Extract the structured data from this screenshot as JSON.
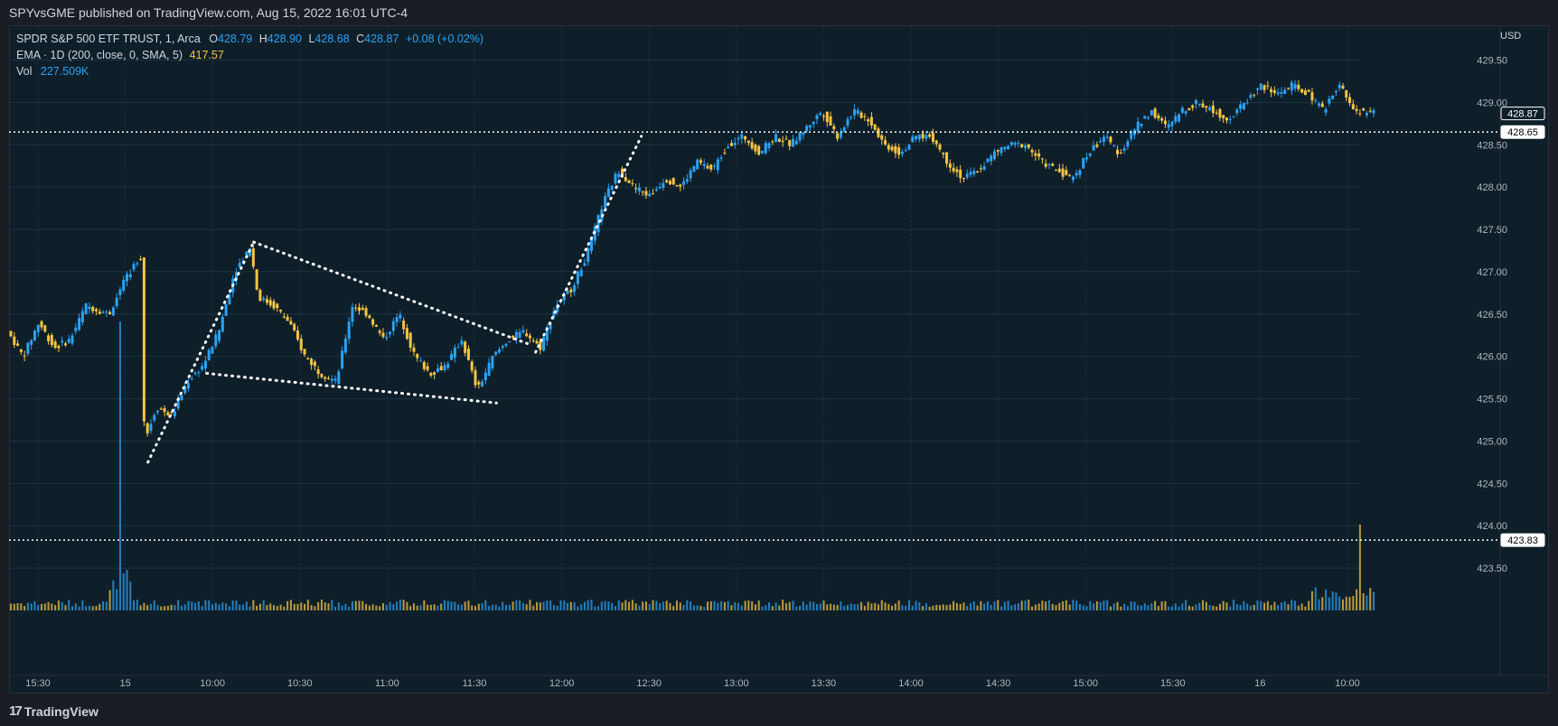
{
  "header": {
    "published": "SPYvsGME published on TradingView.com, Aug 15, 2022 16:01 UTC-4"
  },
  "legend": {
    "symbol": "SPDR S&P 500 ETF TRUST, 1, Arca",
    "o_label": "O",
    "o": "428.79",
    "h_label": "H",
    "h": "428.90",
    "l_label": "L",
    "l": "428.68",
    "c_label": "C",
    "c": "428.87",
    "change": "+0.08 (+0.02%)",
    "ema_label": "EMA · 1D (200, close, 0, SMA, 5)",
    "ema_value": "417.57",
    "vol_label": "Vol",
    "vol_value": "227.509K"
  },
  "axis": {
    "currency": "USD"
  },
  "footer": {
    "logo_mark": "17",
    "brand": "TradingView"
  },
  "colors": {
    "up": "#2aa2f5",
    "down": "#f5c542",
    "bg": "#0f1f2a",
    "grid": "#1f3340",
    "dotted": "#ffffff"
  },
  "chart_data": {
    "type": "candlestick",
    "ylim": [
      423.0,
      429.9
    ],
    "y_ticks": [
      "429.50",
      "429.00",
      "428.50",
      "428.00",
      "427.50",
      "427.00",
      "426.50",
      "426.00",
      "425.50",
      "425.00",
      "424.50",
      "424.00",
      "423.50"
    ],
    "y_tick_values": [
      429.5,
      429.0,
      428.5,
      428.0,
      427.5,
      427.0,
      426.5,
      426.0,
      425.5,
      425.0,
      424.5,
      424.0,
      423.5
    ],
    "x_ticks": [
      "15:30",
      "15",
      "10:00",
      "10:30",
      "11:00",
      "11:30",
      "12:00",
      "12:30",
      "13:00",
      "13:30",
      "14:00",
      "14:30",
      "15:00",
      "15:30",
      "16",
      "10:00"
    ],
    "price_labels": [
      {
        "label": "428.87",
        "value": 428.87,
        "style": "box"
      },
      {
        "label": "428.65",
        "value": 428.65,
        "style": "filled"
      },
      {
        "label": "423.83",
        "value": 423.83,
        "style": "filled"
      }
    ],
    "horizontal_levels": [
      428.65,
      423.83
    ],
    "price_path": [
      [
        0,
        426.3
      ],
      [
        0.02,
        426.0
      ],
      [
        0.04,
        426.4
      ],
      [
        0.06,
        426.1
      ],
      [
        0.08,
        426.2
      ],
      [
        0.1,
        426.6
      ],
      [
        0.13,
        426.5
      ],
      [
        0.15,
        426.9
      ],
      [
        0.17,
        427.2
      ],
      [
        0.175,
        425.0
      ],
      [
        0.19,
        425.4
      ],
      [
        0.21,
        425.3
      ],
      [
        0.23,
        425.7
      ],
      [
        0.25,
        425.9
      ],
      [
        0.27,
        426.3
      ],
      [
        0.29,
        427.0
      ],
      [
        0.31,
        427.3
      ],
      [
        0.32,
        426.7
      ],
      [
        0.34,
        426.6
      ],
      [
        0.36,
        426.4
      ],
      [
        0.38,
        426.0
      ],
      [
        0.4,
        425.8
      ],
      [
        0.42,
        425.7
      ],
      [
        0.44,
        426.6
      ],
      [
        0.46,
        426.5
      ],
      [
        0.48,
        426.2
      ],
      [
        0.5,
        426.5
      ],
      [
        0.52,
        426.0
      ],
      [
        0.54,
        425.8
      ],
      [
        0.56,
        425.9
      ],
      [
        0.58,
        426.2
      ],
      [
        0.6,
        425.6
      ],
      [
        0.62,
        426.0
      ],
      [
        0.64,
        426.2
      ],
      [
        0.66,
        426.3
      ],
      [
        0.68,
        426.1
      ],
      [
        0.7,
        426.6
      ],
      [
        0.72,
        426.8
      ],
      [
        0.74,
        427.2
      ],
      [
        0.76,
        427.8
      ],
      [
        0.78,
        428.2
      ],
      [
        0.8,
        428.0
      ],
      [
        0.82,
        427.9
      ],
      [
        0.84,
        428.1
      ],
      [
        0.86,
        428.0
      ],
      [
        0.88,
        428.3
      ],
      [
        0.9,
        428.2
      ],
      [
        0.92,
        428.5
      ],
      [
        0.94,
        428.6
      ],
      [
        0.96,
        428.4
      ],
      [
        0.98,
        428.6
      ],
      [
        1.0,
        428.5
      ],
      [
        1.02,
        428.7
      ],
      [
        1.04,
        428.9
      ],
      [
        1.06,
        428.6
      ],
      [
        1.08,
        428.9
      ],
      [
        1.1,
        428.8
      ],
      [
        1.12,
        428.5
      ],
      [
        1.14,
        428.4
      ],
      [
        1.16,
        428.6
      ],
      [
        1.18,
        428.6
      ],
      [
        1.2,
        428.3
      ],
      [
        1.22,
        428.1
      ],
      [
        1.24,
        428.2
      ],
      [
        1.26,
        428.4
      ],
      [
        1.28,
        428.5
      ],
      [
        1.3,
        428.5
      ],
      [
        1.32,
        428.3
      ],
      [
        1.34,
        428.2
      ],
      [
        1.36,
        428.1
      ],
      [
        1.38,
        428.4
      ],
      [
        1.4,
        428.6
      ],
      [
        1.42,
        428.4
      ],
      [
        1.44,
        428.7
      ],
      [
        1.46,
        428.9
      ],
      [
        1.48,
        428.7
      ],
      [
        1.5,
        428.9
      ],
      [
        1.52,
        429.0
      ],
      [
        1.54,
        428.9
      ],
      [
        1.56,
        428.8
      ],
      [
        1.58,
        429.0
      ],
      [
        1.6,
        429.2
      ],
      [
        1.62,
        429.1
      ],
      [
        1.64,
        429.2
      ],
      [
        1.66,
        429.1
      ],
      [
        1.68,
        428.9
      ],
      [
        1.7,
        429.2
      ],
      [
        1.72,
        428.9
      ],
      [
        1.74,
        428.87
      ]
    ]
  }
}
